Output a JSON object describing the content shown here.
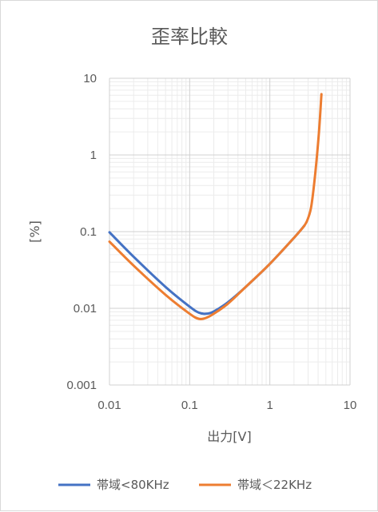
{
  "chart_data": {
    "type": "line",
    "title": "歪率比較",
    "xlabel": "出力[V]",
    "ylabel": "[%]",
    "x_scale": "log",
    "y_scale": "log",
    "xlim": [
      0.01,
      10
    ],
    "ylim": [
      0.001,
      10
    ],
    "x_tick_labels": [
      "0.01",
      "0.1",
      "1",
      "10"
    ],
    "y_tick_labels": [
      "0.001",
      "0.01",
      "0.1",
      "1",
      "10"
    ],
    "grid": true,
    "legend_position": "bottom",
    "series": [
      {
        "name": "帯域<80KHz",
        "color": "#4472c4",
        "x": [
          0.01,
          0.02,
          0.05,
          0.1,
          0.13,
          0.16,
          0.2,
          0.3,
          0.5,
          1,
          2,
          2.7
        ],
        "y": [
          0.098,
          0.047,
          0.019,
          0.0105,
          0.0088,
          0.0085,
          0.0091,
          0.012,
          0.019,
          0.038,
          0.083,
          0.12
        ]
      },
      {
        "name": "帯域＜22KHz",
        "color": "#ed7d31",
        "x": [
          0.01,
          0.02,
          0.05,
          0.1,
          0.13,
          0.16,
          0.2,
          0.3,
          0.5,
          1,
          2,
          2.7,
          3,
          3.3,
          3.7,
          4.1,
          4.4
        ],
        "y": [
          0.074,
          0.036,
          0.015,
          0.0085,
          0.0073,
          0.0075,
          0.0085,
          0.0115,
          0.019,
          0.038,
          0.083,
          0.12,
          0.15,
          0.22,
          0.6,
          2.0,
          6.2
        ]
      }
    ]
  }
}
